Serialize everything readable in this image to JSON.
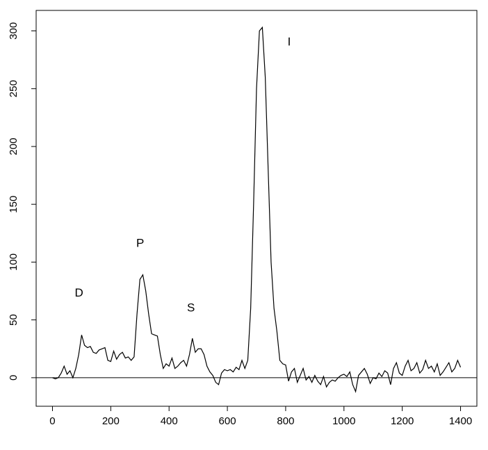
{
  "chart_data": {
    "type": "line",
    "x": [
      0,
      10,
      20,
      30,
      40,
      50,
      60,
      70,
      80,
      90,
      100,
      110,
      120,
      130,
      140,
      150,
      160,
      170,
      180,
      190,
      200,
      210,
      220,
      230,
      240,
      250,
      260,
      270,
      280,
      290,
      300,
      310,
      320,
      330,
      340,
      350,
      360,
      370,
      380,
      390,
      400,
      410,
      420,
      430,
      440,
      450,
      460,
      470,
      480,
      490,
      500,
      510,
      520,
      530,
      540,
      550,
      560,
      570,
      580,
      590,
      600,
      610,
      620,
      630,
      640,
      650,
      660,
      670,
      680,
      690,
      700,
      710,
      720,
      730,
      740,
      750,
      760,
      770,
      780,
      790,
      800,
      810,
      820,
      830,
      840,
      850,
      860,
      870,
      880,
      890,
      900,
      910,
      920,
      930,
      940,
      950,
      960,
      970,
      980,
      990,
      1000,
      1010,
      1020,
      1030,
      1040,
      1050,
      1060,
      1070,
      1080,
      1090,
      1100,
      1110,
      1120,
      1130,
      1140,
      1150,
      1160,
      1170,
      1180,
      1190,
      1200,
      1210,
      1220,
      1230,
      1240,
      1250,
      1260,
      1270,
      1280,
      1290,
      1300,
      1310,
      1320,
      1330,
      1340,
      1350,
      1360,
      1370,
      1380,
      1390,
      1400
    ],
    "series": [
      {
        "color": "#000000",
        "values": [
          0,
          -1,
          0,
          4,
          10,
          3,
          6,
          0,
          8,
          20,
          37,
          28,
          26,
          27,
          22,
          21,
          24,
          25,
          26,
          15,
          14,
          23,
          16,
          20,
          22,
          17,
          18,
          15,
          18,
          55,
          85,
          89,
          75,
          55,
          38,
          37,
          36,
          20,
          8,
          12,
          10,
          17,
          8,
          10,
          13,
          15,
          10,
          20,
          34,
          22,
          25,
          25,
          20,
          10,
          5,
          2,
          -4,
          -6,
          4,
          7,
          6,
          7,
          5,
          9,
          7,
          15,
          8,
          15,
          60,
          150,
          250,
          300,
          303,
          260,
          180,
          100,
          60,
          40,
          15,
          12,
          11,
          -3,
          5,
          8,
          -4,
          2,
          8,
          -2,
          1,
          -4,
          2,
          -3,
          -6,
          1,
          -8,
          -4,
          -2,
          -3,
          0,
          2,
          3,
          1,
          5,
          -6,
          -12,
          2,
          5,
          8,
          3,
          -5,
          0,
          -1,
          4,
          1,
          6,
          4,
          -6,
          8,
          13,
          4,
          2,
          10,
          15,
          6,
          8,
          13,
          4,
          7,
          15,
          8,
          10,
          5,
          12,
          2,
          5,
          9,
          13,
          5,
          8,
          15,
          9
        ]
      }
    ],
    "hline": 0,
    "annotations": [
      {
        "text": "D",
        "x": 91,
        "y": 73
      },
      {
        "text": "P",
        "x": 301,
        "y": 116
      },
      {
        "text": "S",
        "x": 475,
        "y": 60
      },
      {
        "text": "I",
        "x": 812,
        "y": 290
      }
    ],
    "xlim": [
      -56,
      1456
    ],
    "ylim": [
      -24.7,
      317.7
    ],
    "xticks": [
      0,
      200,
      400,
      600,
      800,
      1000,
      1200,
      1400
    ],
    "yticks": [
      0,
      50,
      100,
      150,
      200,
      250,
      300
    ]
  }
}
